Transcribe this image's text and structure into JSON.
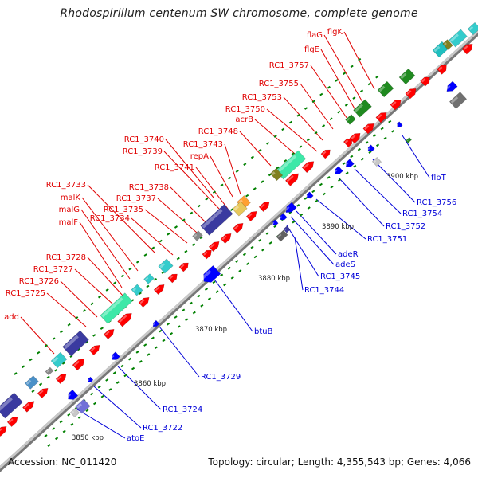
{
  "title": "Rhodospirillum centenum SW chromosome, complete genome",
  "accession": "Accession: NC_011420",
  "summary": "Topology: circular; Length: 4,355,543 bp; Genes: 4,066",
  "colors": {
    "forward_label": "#e00000",
    "reverse_label": "#0000d8",
    "forward_gene": "#ff0000",
    "reverse_gene": "#0000ff",
    "backbone": "#909090",
    "tick": "#008000"
  },
  "scale_labels": [
    "3850 kbp",
    "3860 kbp",
    "3870 kbp",
    "3880 kbp",
    "3890 kbp",
    "3900 kbp"
  ],
  "forward_labels": [
    "flgK",
    "flaG",
    "flgE",
    "RC1_3757",
    "RC1_3755",
    "RC1_3753",
    "RC1_3750",
    "acrB",
    "RC1_3748",
    "RC1_3740",
    "RC1_3743",
    "RC1_3739",
    "repA",
    "RC1_3741",
    "RC1_3738",
    "RC1_3733",
    "RC1_3737",
    "malK",
    "RC1_3735",
    "malG",
    "RC1_3734",
    "malF",
    "RC1_3728",
    "RC1_3727",
    "RC1_3726",
    "RC1_3725",
    "add"
  ],
  "reverse_labels": [
    "flbT",
    "RC1_3756",
    "RC1_3754",
    "RC1_3752",
    "RC1_3751",
    "adeR",
    "adeS",
    "RC1_3745",
    "RC1_3744",
    "btuB",
    "RC1_3729",
    "RC1_3724",
    "RC1_3722",
    "atoE"
  ]
}
